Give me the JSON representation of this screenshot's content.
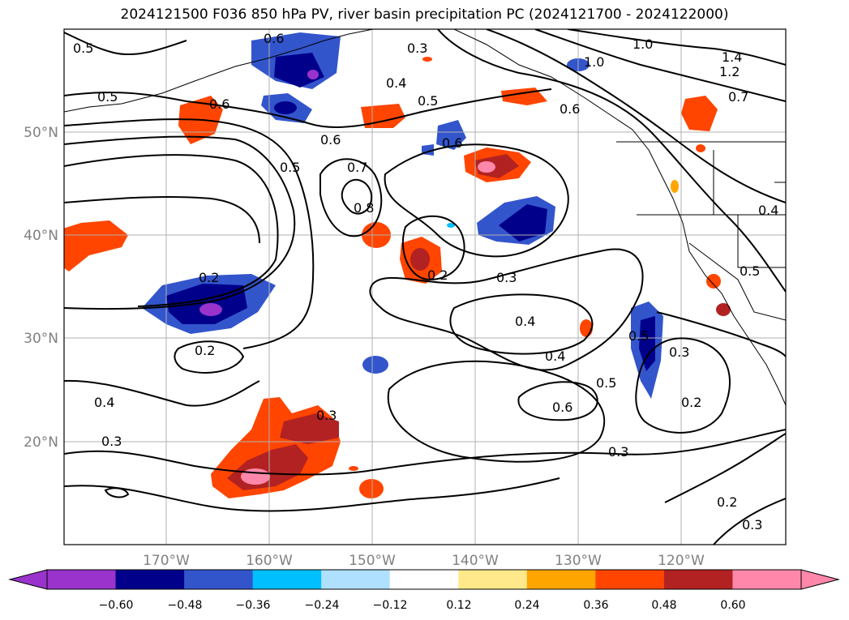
{
  "title": "2024121500 F036 850 hPa PV, river basin precipitation PC (2024121700 - 2024122000)",
  "lon_labels": [
    "170°W",
    "160°W",
    "150°W",
    "140°W",
    "130°W",
    "120°W"
  ],
  "lat_labels": [
    "50°N",
    "40°N",
    "30°N",
    "20°N"
  ],
  "contour_labels": [
    "0.5",
    "0.6",
    "0.3",
    "0.4",
    "0.5",
    "1.0",
    "1.4",
    "1.2",
    "1.0",
    "0.7",
    "0.5",
    "0.6",
    "0.6",
    "0.6",
    "0.6",
    "0.5",
    "0.7",
    "0.8",
    "0.2",
    "0.2",
    "0.2",
    "0.3",
    "0.4",
    "0.4",
    "0.5",
    "0.6",
    "0.5",
    "0.3",
    "0.2",
    "0.4",
    "0.3",
    "0.3",
    "0.3",
    "0.2",
    "0.3",
    "0.4",
    "0.5"
  ],
  "colorbar": {
    "ticks": [
      "−0.60",
      "−0.48",
      "−0.36",
      "−0.24",
      "−0.12",
      "0.12",
      "0.24",
      "0.36",
      "0.48",
      "0.60"
    ],
    "colors": [
      "#9933cc",
      "#00008b",
      "#3355cc",
      "#00bfff",
      "#b0e0ff",
      "#ffffff",
      "#ffe98a",
      "#ffa500",
      "#ff4500",
      "#b22222",
      "#ff88aa",
      "#ff88aa"
    ]
  },
  "colors": {
    "frame": "#000000",
    "grid": "#b0b0b0",
    "contour": "#000000",
    "label_gray": "#808080"
  }
}
